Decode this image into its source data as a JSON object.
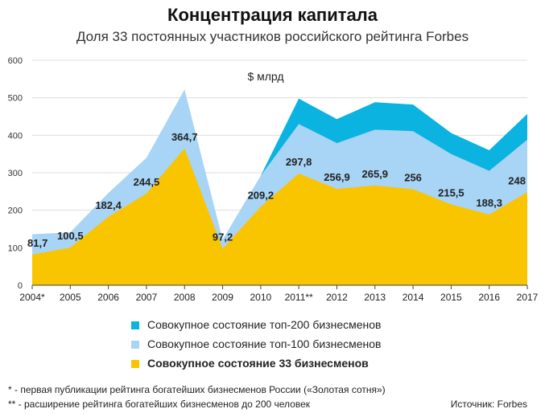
{
  "title": "Концентрация капитала",
  "subtitle": "Доля 33 постоянных участников российского рейтинга Forbes",
  "chart_data": {
    "type": "area",
    "unit_label": "$ млрд",
    "categories": [
      "2004*",
      "2005",
      "2006",
      "2007",
      "2008",
      "2009",
      "2010",
      "2011**",
      "2012",
      "2013",
      "2014",
      "2015",
      "2016",
      "2017"
    ],
    "ylim": [
      0,
      600
    ],
    "yticks": [
      0,
      100,
      200,
      300,
      400,
      500,
      600
    ],
    "grid": true,
    "series": [
      {
        "name": "Совокупное состояние топ-200 бизнесменов",
        "color": "#0bb3e0",
        "values": [
          null,
          null,
          null,
          null,
          null,
          null,
          null,
          498,
          443,
          488,
          482,
          406,
          360,
          457
        ]
      },
      {
        "name": "Совокупное состояние топ-100 бизнесменов",
        "color": "#a8d4f5",
        "values": [
          136,
          141,
          246,
          340,
          522,
          122,
          292,
          430,
          379,
          415,
          411,
          350,
          305,
          388
        ]
      },
      {
        "name": "Совокупное состояние 33 бизнесменов",
        "color": "#f9c400",
        "values": [
          81.7,
          100.5,
          182.4,
          244.5,
          364.7,
          97.2,
          209.2,
          297.8,
          256.9,
          265.9,
          256,
          215.5,
          188.3,
          248
        ],
        "data_labels": [
          "81,7",
          "100,5",
          "182,4",
          "244,5",
          "364,7",
          "97,2",
          "209,2",
          "297,8",
          "256,9",
          "265,9",
          "256",
          "215,5",
          "188,3",
          "248"
        ]
      }
    ]
  },
  "footnotes": [
    "* - первая публикации рейтинга богатейших бизнесменов России («Золотая сотня»)",
    "** - расширение рейтинга богатейших бизнесменов до 200 человек"
  ],
  "source": "Источник: Forbes"
}
